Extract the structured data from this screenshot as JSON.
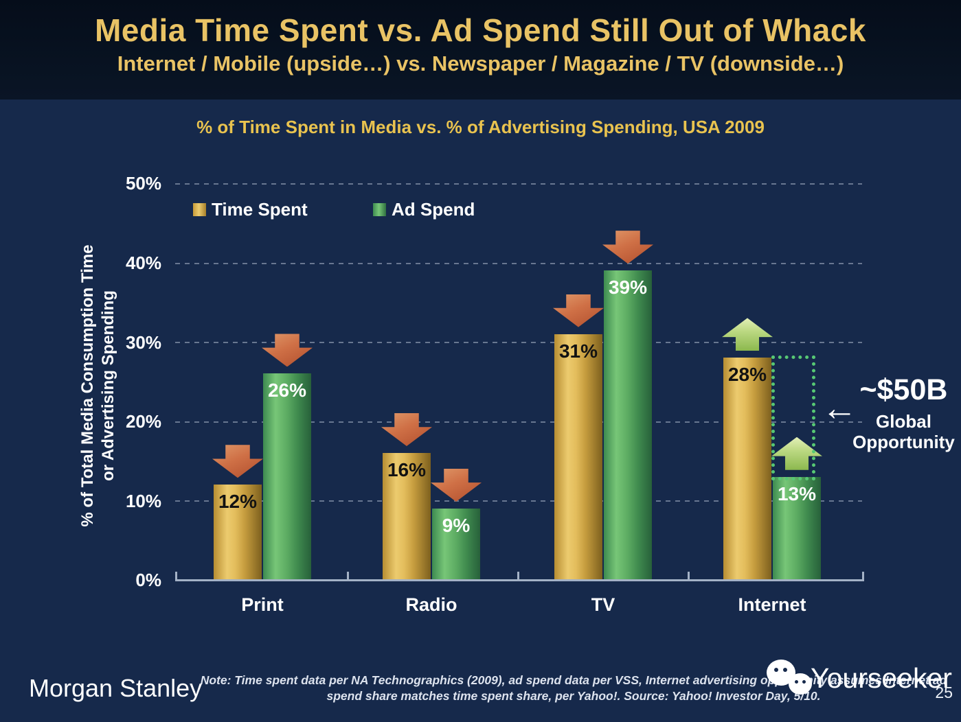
{
  "header": {
    "title": "Media Time Spent vs. Ad Spend Still Out of Whack",
    "subtitle": "Internet / Mobile (upside…) vs. Newspaper / Magazine / TV (downside…)"
  },
  "chart_data": {
    "type": "bar",
    "title": "% of Time Spent in Media vs. % of Advertising Spending, USA 2009",
    "categories": [
      "Print",
      "Radio",
      "TV",
      "Internet"
    ],
    "series": [
      {
        "name": "Time Spent",
        "color": "#d9a940",
        "values": [
          12,
          16,
          31,
          28
        ],
        "labels": [
          "12%",
          "16%",
          "31%",
          "28%"
        ]
      },
      {
        "name": "Ad Spend",
        "color": "#56a75e",
        "values": [
          26,
          9,
          39,
          13
        ],
        "labels": [
          "26%",
          "9%",
          "39%",
          "13%"
        ]
      }
    ],
    "ylabel_line1": "% of Total Media Consumption Time",
    "ylabel_line2": "or Advertising Spending",
    "yticks": [
      "50%",
      "40%",
      "30%",
      "20%",
      "10%",
      "0%"
    ],
    "ylim": [
      0,
      50
    ],
    "grid": "dashed horizontal lines every 10%",
    "legend_position": "top-left inside plot",
    "trend_arrows": [
      "down",
      "down",
      "down",
      "up"
    ],
    "arrow_colors": {
      "down": "#c4663f",
      "up": "#a9cb6b"
    },
    "annotation": {
      "value": "~$50B",
      "caption_line1": "Global",
      "caption_line2": "Opportunity",
      "pointer": "←",
      "target": "dotted gap between Internet time spent (28%) and ad spend (13%)"
    }
  },
  "footer": {
    "logo": "Morgan Stanley",
    "note_line1": "Note: Time spent data per NA Technographics (2009), ad spend data per VSS, Internet advertising opportunity assumes Internet ad",
    "note_line2": "spend share matches time spent share, per Yahoo!. Source: Yahoo! Investor Day, 5/10.",
    "watermark": "Yourseeker",
    "page_number": "25"
  }
}
